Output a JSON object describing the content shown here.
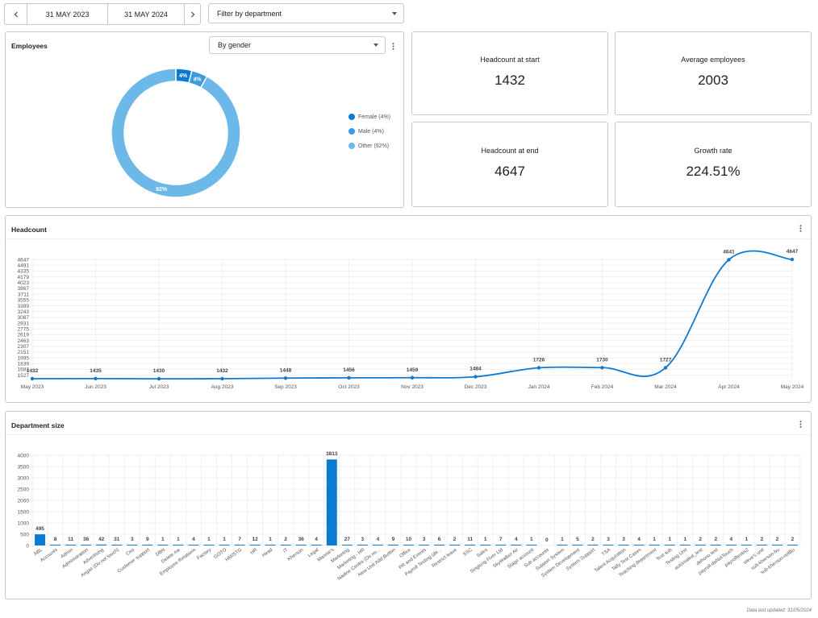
{
  "toolbar": {
    "prev_icon": "chevron-left-icon",
    "start_date": "31 MAY 2023",
    "end_date": "31 MAY 2024",
    "next_icon": "chevron-right-icon",
    "department_filter_placeholder": "Filter by department"
  },
  "employees_card": {
    "title": "Employees",
    "group_by": "By gender",
    "legend": [
      {
        "label": "Female (4%)",
        "color": "#0b7bd1"
      },
      {
        "label": "Male (4%)",
        "color": "#3a9be0"
      },
      {
        "label": "Other (92%)",
        "color": "#6cb8e8"
      }
    ],
    "chart_data": {
      "type": "pie",
      "categories": [
        "Female",
        "Male",
        "Other"
      ],
      "values": [
        4,
        4,
        92
      ],
      "labels": [
        "4%",
        "4%",
        "92%"
      ],
      "colors": [
        "#0b7bd1",
        "#3a9be0",
        "#6cb8e8"
      ],
      "legend": "right"
    }
  },
  "kpis": {
    "headcount_start": {
      "label": "Headcount at start",
      "value": "1432"
    },
    "average_employees": {
      "label": "Average employees",
      "value": "2003"
    },
    "headcount_end": {
      "label": "Headcount at end",
      "value": "4647"
    },
    "growth_rate": {
      "label": "Growth rate",
      "value": "224.51%"
    }
  },
  "headcount_card": {
    "title": "Headcount",
    "chart_data": {
      "type": "line",
      "categories": [
        "May 2023",
        "Jun 2023",
        "Jul 2023",
        "Aug 2023",
        "Sep 2023",
        "Oct 2023",
        "Nov 2023",
        "Dec 2023",
        "Jan 2024",
        "Feb 2024",
        "Mar 2024",
        "Apr 2024",
        "May 2024"
      ],
      "values": [
        1432,
        1435,
        1430,
        1432,
        1448,
        1456,
        1459,
        1484,
        1726,
        1730,
        1727,
        4641,
        4647
      ],
      "yticks": [
        1527,
        1683,
        1839,
        1995,
        2151,
        2307,
        2463,
        2619,
        2775,
        2931,
        3087,
        3243,
        3399,
        3555,
        3711,
        3867,
        4023,
        4179,
        4335,
        4491,
        4647
      ],
      "ylim": [
        1432,
        4647
      ],
      "grid": true,
      "color": "#0b7bd1"
    }
  },
  "department_card": {
    "title": "Department size",
    "chart_data": {
      "type": "bar",
      "categories": [
        "ABL",
        "Accounts",
        "Admin",
        "Administration",
        "Advertising",
        "Angas (Do not touch)",
        "Ceo",
        "Customer support",
        "DBN",
        "Delete me",
        "Employee Relations",
        "Factory",
        "GOTO",
        "HM/STG",
        "HR",
        "Head",
        "IT",
        "Kherson",
        "Legal",
        "Mannie's",
        "Marketing",
        "Marketing - HR",
        "Nadine Centre (Do no...",
        "New Unit Add Button",
        "Office",
        "PR and Events",
        "Payroll Testing (de...",
        "Restrict leave",
        "SSC",
        "Sales",
        "Singlong Fiver Ltd",
        "SkyWalker Air",
        "Stage account",
        "Sub accounts",
        "Support System",
        "System Development",
        "System Support",
        "TSA",
        "Talent Acquisition",
        "Tally Test Cases",
        "Teaching department",
        "Test sub",
        "Testing Unit",
        "automated_test",
        "dehono test",
        "payroll-doNotTouch",
        "payrolltestis2",
        "steve's unit",
        "sub-kherson-bu",
        "sub-kherson-notBu"
      ],
      "values": [
        495,
        8,
        11,
        36,
        42,
        31,
        3,
        9,
        1,
        1,
        4,
        1,
        1,
        7,
        12,
        1,
        2,
        36,
        4,
        3813,
        27,
        3,
        4,
        9,
        10,
        3,
        6,
        2,
        11,
        1,
        7,
        4,
        1,
        0,
        1,
        5,
        2,
        3,
        3,
        4,
        1,
        1,
        1,
        2,
        2,
        4,
        1,
        2,
        2,
        2
      ],
      "yticks": [
        0,
        500,
        1000,
        1500,
        2000,
        2500,
        3000,
        3500,
        4000
      ],
      "ylim": [
        0,
        4000
      ],
      "grid": true,
      "color": "#0b7bd1"
    }
  },
  "footer": {
    "last_updated": "Data last updated: 31/05/2024"
  }
}
